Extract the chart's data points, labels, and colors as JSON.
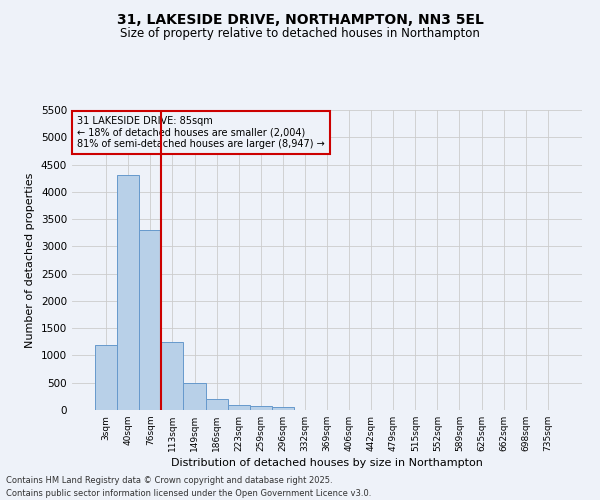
{
  "title1": "31, LAKESIDE DRIVE, NORTHAMPTON, NN3 5EL",
  "title2": "Size of property relative to detached houses in Northampton",
  "xlabel": "Distribution of detached houses by size in Northampton",
  "ylabel": "Number of detached properties",
  "bar_categories": [
    "3sqm",
    "40sqm",
    "76sqm",
    "113sqm",
    "149sqm",
    "186sqm",
    "223sqm",
    "259sqm",
    "296sqm",
    "332sqm",
    "369sqm",
    "406sqm",
    "442sqm",
    "479sqm",
    "515sqm",
    "552sqm",
    "589sqm",
    "625sqm",
    "662sqm",
    "698sqm",
    "735sqm"
  ],
  "bar_values": [
    1200,
    4300,
    3300,
    1250,
    500,
    200,
    100,
    80,
    60,
    0,
    0,
    0,
    0,
    0,
    0,
    0,
    0,
    0,
    0,
    0,
    0
  ],
  "bar_color": "#b8d0e8",
  "bar_edge_color": "#6699cc",
  "grid_color": "#cccccc",
  "vline_color": "#cc0000",
  "annotation_text": "31 LAKESIDE DRIVE: 85sqm\n← 18% of detached houses are smaller (2,004)\n81% of semi-detached houses are larger (8,947) →",
  "annotation_box_color": "#cc0000",
  "ylim": [
    0,
    5500
  ],
  "yticks": [
    0,
    500,
    1000,
    1500,
    2000,
    2500,
    3000,
    3500,
    4000,
    4500,
    5000,
    5500
  ],
  "footnote1": "Contains HM Land Registry data © Crown copyright and database right 2025.",
  "footnote2": "Contains public sector information licensed under the Open Government Licence v3.0.",
  "bg_color": "#eef2f9"
}
